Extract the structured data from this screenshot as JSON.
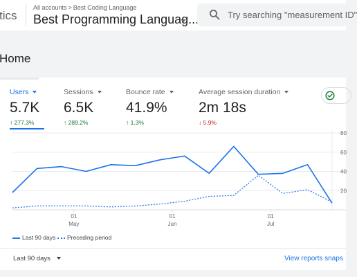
{
  "header": {
    "app_name": "tics",
    "breadcrumb": [
      "All accounts",
      "Best Coding Language"
    ],
    "breadcrumb_separator": ">",
    "property_name": "Best Programming Languag...",
    "search_placeholder": "Try searching \"measurement ID\""
  },
  "page": {
    "title": "Home"
  },
  "metrics": [
    {
      "label": "Users",
      "value": "5.7K",
      "change": "↑ 277.3%",
      "trend": "up",
      "active": true
    },
    {
      "label": "Sessions",
      "value": "6.5K",
      "change": "↑ 289.2%",
      "trend": "up",
      "active": false
    },
    {
      "label": "Bounce rate",
      "value": "41.9%",
      "change": "↑ 1.3%",
      "trend": "up",
      "active": false
    },
    {
      "label": "Average session duration",
      "value": "2m 18s",
      "change": "↓ 5.9%",
      "trend": "down",
      "active": false
    }
  ],
  "chart_data": {
    "type": "line",
    "x_ticks": [
      {
        "day": "01",
        "month": "May",
        "index": 2.5
      },
      {
        "day": "01",
        "month": "Jun",
        "index": 6.5
      },
      {
        "day": "01",
        "month": "Jul",
        "index": 10.5
      }
    ],
    "y_ticks": [
      {
        "label": "80",
        "value": 80
      },
      {
        "label": "60",
        "value": 60
      },
      {
        "label": "40",
        "value": 40
      },
      {
        "label": "20",
        "value": 20
      }
    ],
    "ylim": [
      0,
      80
    ],
    "series": [
      {
        "name": "Last 90 days",
        "style": "solid",
        "values": [
          18,
          43,
          45,
          40,
          47,
          46,
          52,
          56,
          38,
          66,
          37,
          38,
          47,
          7
        ]
      },
      {
        "name": "Preceding period",
        "style": "dotted",
        "values": [
          2,
          4,
          4,
          4,
          3,
          4,
          6,
          9,
          14,
          15,
          36,
          17,
          21,
          8
        ]
      }
    ],
    "colors": {
      "series": "#1a73e8",
      "grid": "#e8eaed",
      "axis": "#dadce0"
    }
  },
  "footer": {
    "date_range": "Last 90 days",
    "view_link": "View reports snaps"
  }
}
